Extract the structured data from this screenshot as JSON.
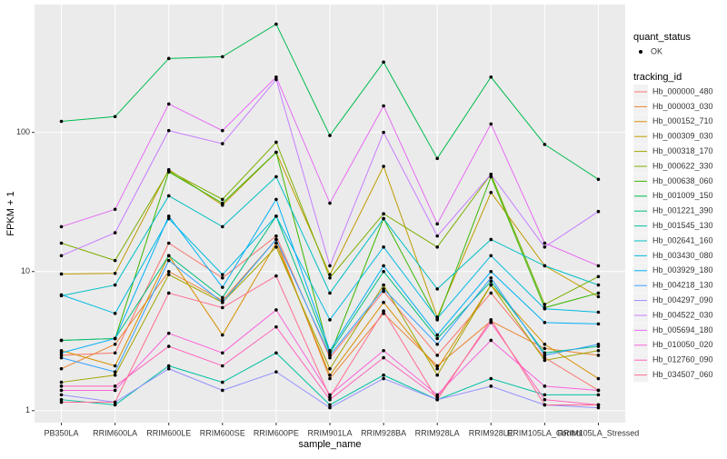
{
  "chart_data": {
    "type": "line",
    "x_label": "sample_name",
    "y_label": "FPKM + 1",
    "categories": [
      "PB350LA",
      "RRIM600LA",
      "RRIM600LE",
      "RRIM600SE",
      "RRIM600PE",
      "RRIM901LA",
      "RRIM928BA",
      "RRIM928LA",
      "RRIM928LE",
      "RRIM105LA_Control",
      "RRIM105LA_Stressed"
    ],
    "ylim": [
      0.82,
      830
    ],
    "yticks": [
      1,
      10,
      100
    ],
    "log_y": true,
    "grid": true,
    "point_color": "#000000",
    "point_legend_title": "quant_status",
    "point_legend_label": "OK",
    "legend_title": "tracking_id",
    "series": [
      {
        "name": "Hb_000000_480",
        "color": "#F8766D",
        "values": [
          2.5,
          2.6,
          16,
          9,
          18,
          2.4,
          7.2,
          2.5,
          7,
          2.4,
          1.4
        ]
      },
      {
        "name": "Hb_000003_030",
        "color": "#EA8331",
        "values": [
          2,
          3,
          10,
          6.2,
          17,
          1.7,
          5,
          2.1,
          4.4,
          2.8,
          2.5
        ]
      },
      {
        "name": "Hb_000152_710",
        "color": "#D89000",
        "values": [
          2.7,
          2.1,
          13,
          3.5,
          16,
          1.8,
          6,
          2,
          8,
          3,
          1.7
        ]
      },
      {
        "name": "Hb_000309_030",
        "color": "#C09B00",
        "values": [
          9.6,
          9.7,
          54,
          30,
          72,
          9.5,
          57,
          4.7,
          37,
          11,
          6.6
        ]
      },
      {
        "name": "Hb_000318_170",
        "color": "#A3A500",
        "values": [
          1.6,
          1.8,
          9.5,
          6,
          15,
          2,
          8,
          1.8,
          8,
          2.3,
          2.7
        ]
      },
      {
        "name": "Hb_000622_330",
        "color": "#7CAE00",
        "values": [
          16,
          12,
          53,
          33,
          85,
          9,
          26,
          15,
          50,
          5.8,
          9.2
        ]
      },
      {
        "name": "Hb_000638_060",
        "color": "#39B600",
        "values": [
          3.2,
          3.3,
          52,
          31,
          72,
          2.5,
          24,
          4.5,
          48,
          5.5,
          7
        ]
      },
      {
        "name": "Hb_001009_150",
        "color": "#00BB4E",
        "values": [
          120,
          130,
          340,
          350,
          600,
          95,
          320,
          65,
          250,
          82,
          46
        ]
      },
      {
        "name": "Hb_001221_390",
        "color": "#00BF7D",
        "values": [
          3.2,
          3.3,
          13,
          6.5,
          25,
          2.6,
          10,
          3.3,
          8.5,
          2.6,
          2.9
        ]
      },
      {
        "name": "Hb_001545_130",
        "color": "#00C1A3",
        "values": [
          1.2,
          1.1,
          2.1,
          1.6,
          2.6,
          1.1,
          1.8,
          1.2,
          1.7,
          1.3,
          1.3
        ]
      },
      {
        "name": "Hb_002641_160",
        "color": "#00BFC4",
        "values": [
          6.7,
          8,
          35,
          21,
          48,
          7,
          24,
          7.5,
          17,
          11,
          8
        ]
      },
      {
        "name": "Hb_003430_080",
        "color": "#00BAE0",
        "values": [
          6.8,
          5,
          24,
          9.5,
          25,
          4.5,
          15,
          4.6,
          13,
          5.4,
          5.1
        ]
      },
      {
        "name": "Hb_003929_180",
        "color": "#00B0F6",
        "values": [
          2.6,
          3.3,
          25,
          7.7,
          33,
          2.7,
          11,
          3.5,
          10,
          4.3,
          4.2
        ]
      },
      {
        "name": "Hb_004218_130",
        "color": "#35A2FF",
        "values": [
          2.4,
          1.9,
          12,
          6,
          17,
          2.5,
          7.5,
          3,
          9,
          2.5,
          3
        ]
      },
      {
        "name": "Hb_004297_090",
        "color": "#9590FF",
        "values": [
          1.3,
          1.15,
          2,
          1.4,
          1.9,
          1.05,
          1.7,
          1.2,
          1.5,
          1.1,
          1.05
        ]
      },
      {
        "name": "Hb_004522_030",
        "color": "#C77CFF",
        "values": [
          13,
          19,
          103,
          83,
          240,
          11,
          100,
          18,
          50,
          15,
          27
        ]
      },
      {
        "name": "Hb_005694_180",
        "color": "#E76BF3",
        "values": [
          21,
          28,
          160,
          103,
          250,
          31,
          155,
          22,
          115,
          16,
          11
        ]
      },
      {
        "name": "Hb_010050_020",
        "color": "#FA62DB",
        "values": [
          1.4,
          1.4,
          3.6,
          2.6,
          5.3,
          1.3,
          2.7,
          1.3,
          3.2,
          1.5,
          1.4
        ]
      },
      {
        "name": "Hb_012760_090",
        "color": "#FF62BC",
        "values": [
          1.5,
          1.5,
          2.9,
          2.1,
          4,
          1.2,
          2.4,
          1.25,
          4.3,
          1.2,
          1.1
        ]
      },
      {
        "name": "Hb_034507_060",
        "color": "#FF6C91",
        "values": [
          1.15,
          1.15,
          7,
          5.5,
          9.3,
          1.25,
          5.2,
          1.2,
          4.5,
          1.1,
          1.1
        ]
      }
    ]
  }
}
